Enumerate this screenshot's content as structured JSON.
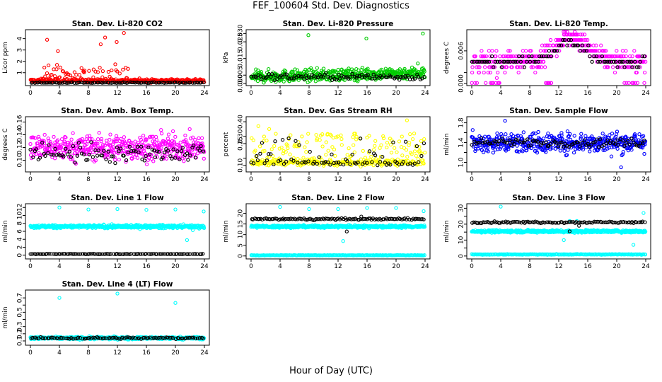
{
  "figure": {
    "title": "FEF_100604  Std. Dev. Diagnostics",
    "xlabel": "Hour of Day (UTC)"
  },
  "chart_data": [
    {
      "type": "scatter",
      "title": "Stan. Dev. Li-820 CO2",
      "xlabel": "",
      "ylabel": "Licor ppm",
      "xlim": [
        0,
        24
      ],
      "ylim": [
        0.05,
        4.6
      ],
      "xticks": [
        0,
        4,
        8,
        12,
        16,
        20,
        24
      ],
      "yticks": [
        1,
        2,
        3,
        4
      ],
      "series": [
        {
          "color": "#ff0000",
          "base": 0.3,
          "noise": 0.15,
          "density": 380,
          "bands": [
            {
              "x0": 1.5,
              "x1": 13.5,
              "hi": 1.8
            }
          ],
          "outliers": [
            [
              2.3,
              3.9
            ],
            [
              3.8,
              2.9
            ],
            [
              9.7,
              3.5
            ],
            [
              10.3,
              4.1
            ],
            [
              12.9,
              4.5
            ],
            [
              11.9,
              3.7
            ]
          ]
        },
        {
          "color": "#000000",
          "base": 0.12,
          "noise": 0.04,
          "density": 100
        }
      ]
    },
    {
      "type": "scatter",
      "title": "Stan. Dev. Li-820 Pressure",
      "xlabel": "",
      "ylabel": "kPa",
      "xlim": [
        0,
        24
      ],
      "ylim": [
        0,
        0.031
      ],
      "xticks": [
        0,
        4,
        8,
        12,
        16,
        20,
        24
      ],
      "yticks": [
        0.0,
        0.005,
        0.015,
        0.025,
        0.03
      ],
      "ytick_labels": [
        "0.000",
        "0.005",
        "0.015",
        "0.025",
        "0.030"
      ],
      "series": [
        {
          "color": "#00cc00",
          "base": 0.004,
          "noise": 0.0035,
          "density": 480,
          "trend": 0.0001,
          "outliers": [
            [
              7.9,
              0.029
            ],
            [
              15.9,
              0.027
            ],
            [
              23.7,
              0.03
            ],
            [
              23.0,
              0.012
            ]
          ]
        },
        {
          "color": "#000000",
          "base": 0.004,
          "noise": 0.002,
          "density": 100
        }
      ]
    },
    {
      "type": "scatter",
      "title": "Stan. Dev. Li-820 Temp.",
      "xlabel": "",
      "ylabel": "degrees C",
      "xlim": [
        0,
        24
      ],
      "ylim": [
        0,
        0.0095
      ],
      "xticks": [
        0,
        4,
        8,
        12,
        16,
        20,
        24
      ],
      "yticks": [
        0.0,
        0.002,
        0.006
      ],
      "ytick_labels": [
        "0.000",
        "",
        "0.006"
      ],
      "series": [
        {
          "color": "#ff00ff",
          "base": 0.004,
          "noise": 0.0018,
          "density": 480,
          "quantize": 0.001,
          "hump": {
            "center": 13.5,
            "width": 3.2,
            "amp": 0.0045
          },
          "zeros": [
            [
              0,
              4
            ],
            [
              10,
              11
            ],
            [
              21,
              24
            ]
          ]
        },
        {
          "color": "#000000",
          "base": 0.004,
          "noise": 0.0008,
          "density": 90,
          "quantize": 0.001,
          "hump": {
            "center": 13.5,
            "width": 3.2,
            "amp": 0.0035
          }
        }
      ]
    },
    {
      "type": "scatter",
      "title": "Stan. Dev. Amb. Box Temp.",
      "xlabel": "",
      "ylabel": "degrees C",
      "xlim": [
        0,
        24
      ],
      "ylim": [
        0.085,
        0.165
      ],
      "xticks": [
        0,
        4,
        8,
        12,
        16,
        20,
        24
      ],
      "yticks": [
        0.1,
        0.12,
        0.14,
        0.16
      ],
      "ytick_labels": [
        "0.10",
        "0.12",
        "0.14",
        "0.16"
      ],
      "series": [
        {
          "color": "#ff00ff",
          "base": 0.12,
          "noise": 0.02,
          "density": 480
        },
        {
          "color": "#000000",
          "base": 0.112,
          "noise": 0.015,
          "density": 95
        }
      ]
    },
    {
      "type": "scatter",
      "title": "Stan. Dev. Gas Stream RH",
      "xlabel": "",
      "ylabel": "percent",
      "xlim": [
        0,
        24
      ],
      "ylim": [
        0.07,
        0.42
      ],
      "xticks": [
        0,
        4,
        8,
        12,
        16,
        20,
        24
      ],
      "yticks": [
        0.1,
        0.15,
        0.25,
        0.3,
        0.4
      ],
      "ytick_labels": [
        "0.10",
        "",
        "0.25",
        "0.30",
        "0.40"
      ],
      "series": [
        {
          "color": "#ffff00",
          "base": 0.12,
          "noise": 0.02,
          "density": 380,
          "bands": [
            {
              "x0": 0,
              "x1": 24,
              "hi": 0.32
            }
          ],
          "outliers": [
            [
              1,
              0.37
            ],
            [
              21.5,
              0.41
            ],
            [
              2.5,
              0.35
            ]
          ]
        },
        {
          "color": "#000000",
          "base": 0.12,
          "noise": 0.015,
          "density": 80,
          "bands": [
            {
              "x0": 0,
              "x1": 24,
              "hi": 0.29
            }
          ]
        }
      ]
    },
    {
      "type": "scatter",
      "title": "Stan. Dev. Sample Flow",
      "xlabel": "",
      "ylabel": "ml/min",
      "xlim": [
        0,
        24
      ],
      "ylim": [
        0.85,
        1.88
      ],
      "xticks": [
        0,
        4,
        8,
        12,
        16,
        20,
        24
      ],
      "yticks": [
        1.0,
        1.2,
        1.4,
        1.6,
        1.8
      ],
      "ytick_labels": [
        "1.0",
        "",
        "1.4",
        "",
        "1.8"
      ],
      "series": [
        {
          "color": "#0000ff",
          "base": 1.4,
          "noise": 0.2,
          "density": 480,
          "outliers": [
            [
              4.6,
              1.84
            ],
            [
              20.6,
              0.9
            ]
          ]
        },
        {
          "color": "#000000",
          "base": 1.4,
          "noise": 0.08,
          "density": 95
        }
      ]
    },
    {
      "type": "scatter",
      "title": "Stan. Dev. Line 1 Flow",
      "xlabel": "",
      "ylabel": "ml/min",
      "xlim": [
        0,
        24
      ],
      "ylim": [
        -0.4,
        12.4
      ],
      "xticks": [
        0,
        4,
        8,
        12,
        16,
        20,
        24
      ],
      "yticks": [
        0,
        2,
        4,
        6,
        8,
        10,
        12
      ],
      "series": [
        {
          "color": "#00ffff",
          "base": 7.2,
          "noise": 0.4,
          "density": 480,
          "outliers": [
            [
              4,
              12
            ],
            [
              8,
              11.5
            ],
            [
              12,
              11.6
            ],
            [
              16,
              11.4
            ],
            [
              20,
              11.5
            ],
            [
              23.9,
              11
            ],
            [
              21.6,
              3.8
            ],
            [
              22.4,
              6.3
            ]
          ]
        },
        {
          "color": "#000000",
          "base": 0.3,
          "noise": 0.06,
          "density": 95
        }
      ]
    },
    {
      "type": "scatter",
      "title": "Stan. Dev. Line 2 Flow",
      "xlabel": "",
      "ylabel": "ml/min",
      "xlim": [
        0,
        24
      ],
      "ylim": [
        -0.4,
        23.5
      ],
      "xticks": [
        0,
        4,
        8,
        12,
        16,
        20,
        24
      ],
      "yticks": [
        0,
        5,
        10,
        15,
        20
      ],
      "series": [
        {
          "color": "#00ffff",
          "base": 13.8,
          "noise": 0.6,
          "density": 480,
          "outliers": [
            [
              4,
              23
            ],
            [
              8,
              22
            ],
            [
              12,
              22
            ],
            [
              16,
              22.5
            ],
            [
              20,
              22.5
            ],
            [
              23.8,
              21
            ],
            [
              12.7,
              7
            ]
          ]
        },
        {
          "color": "#00ffff",
          "base": 0.3,
          "noise": 0.1,
          "density": 200
        },
        {
          "color": "#000000",
          "base": 17.3,
          "noise": 0.4,
          "density": 110,
          "outliers": [
            [
              13.2,
              11.5
            ],
            [
              15.2,
              18.5
            ]
          ]
        }
      ]
    },
    {
      "type": "scatter",
      "title": "Stan. Dev. Line 3 Flow",
      "xlabel": "",
      "ylabel": "ml/min",
      "xlim": [
        0,
        24
      ],
      "ylim": [
        -0.5,
        31.5
      ],
      "xticks": [
        0,
        4,
        8,
        12,
        16,
        20,
        24
      ],
      "yticks": [
        0,
        5,
        10,
        15,
        20,
        25,
        30
      ],
      "ytick_labels": [
        "0",
        "",
        "10",
        "",
        "20",
        "",
        "30"
      ],
      "series": [
        {
          "color": "#00ffff",
          "base": 15.5,
          "noise": 0.8,
          "density": 480,
          "outliers": [
            [
              4,
              31
            ],
            [
              12.7,
              10
            ],
            [
              22.3,
              7
            ],
            [
              23.7,
              27
            ],
            [
              13.5,
              22
            ],
            [
              14.5,
              22
            ]
          ]
        },
        {
          "color": "#00ffff",
          "base": 1.0,
          "noise": 0.2,
          "density": 200
        },
        {
          "color": "#000000",
          "base": 21.2,
          "noise": 0.5,
          "density": 110,
          "outliers": [
            [
              13.5,
              15.5
            ],
            [
              14.8,
              19
            ]
          ]
        }
      ]
    },
    {
      "type": "scatter",
      "title": "Stan. Dev. Line 4 (LT) Flow",
      "xlabel": "",
      "ylabel": "ml/min",
      "xlim": [
        0,
        24
      ],
      "ylim": [
        0.07,
        0.78
      ],
      "xticks": [
        0,
        4,
        8,
        12,
        16,
        20,
        24
      ],
      "yticks": [
        0.1,
        0.2,
        0.3,
        0.4,
        0.5,
        0.6,
        0.7
      ],
      "ytick_labels": [
        "0.1",
        "0.2",
        "0.3",
        "",
        "0.5",
        "",
        "0.7"
      ],
      "series": [
        {
          "color": "#00ffff",
          "base": 0.14,
          "noise": 0.018,
          "density": 480,
          "outliers": [
            [
              4,
              0.7
            ],
            [
              12,
              0.76
            ],
            [
              20,
              0.63
            ]
          ]
        },
        {
          "color": "#000000",
          "base": 0.14,
          "noise": 0.012,
          "density": 95
        }
      ]
    }
  ]
}
